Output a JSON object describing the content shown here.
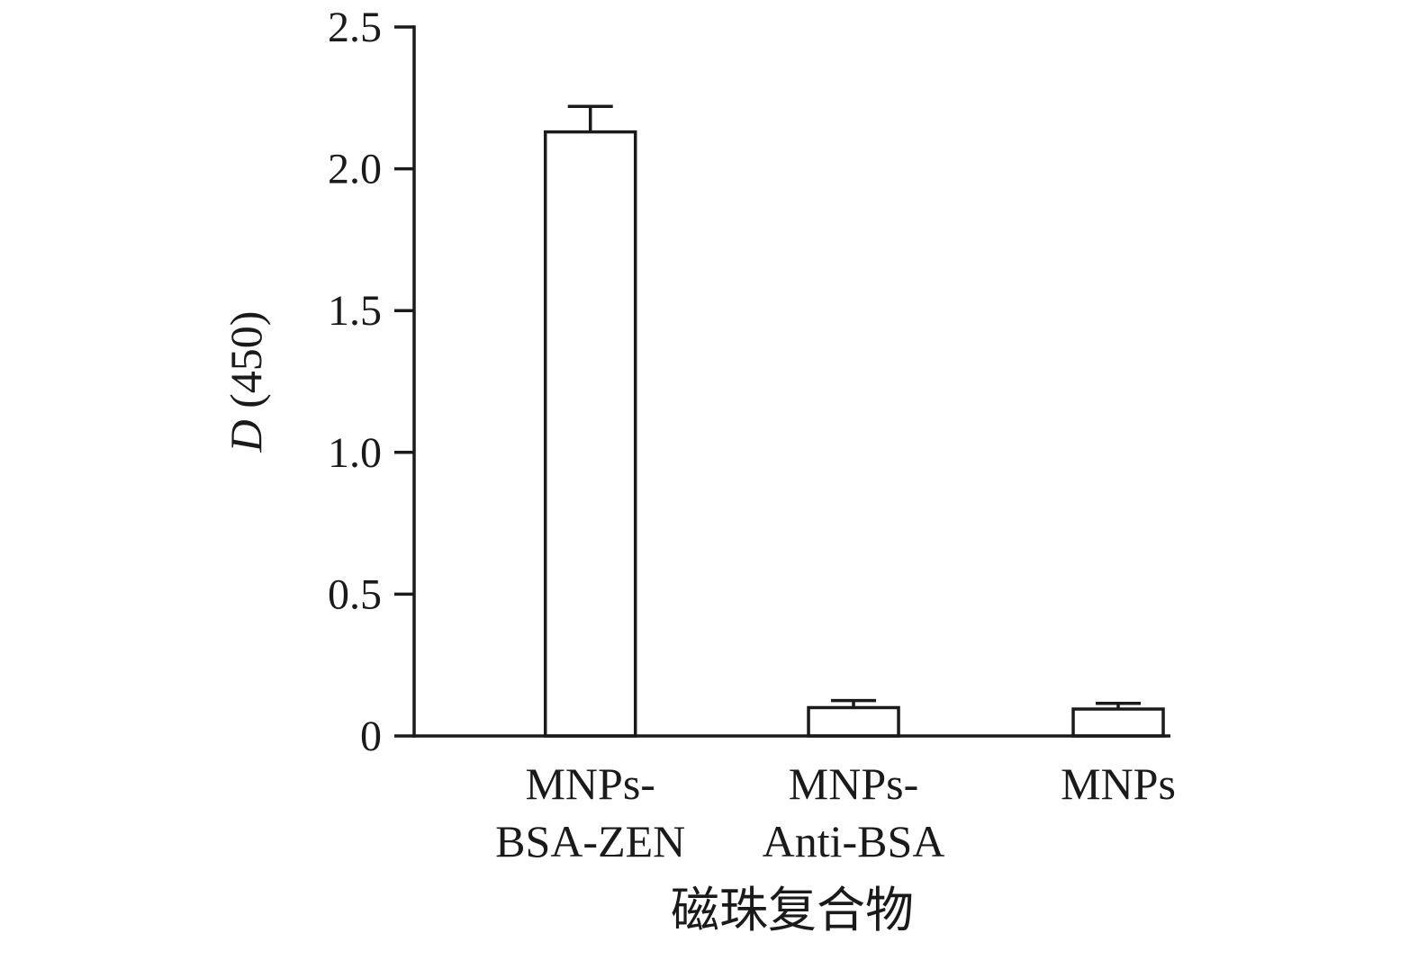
{
  "figure": {
    "background": "#ffffff",
    "ink": "#1a1a1a"
  },
  "chart_data": {
    "type": "bar",
    "title": "",
    "categories": [
      [
        "MNPs-",
        "BSA-ZEN"
      ],
      [
        "MNPs-",
        "Anti-BSA"
      ],
      [
        "MNPs"
      ]
    ],
    "values": [
      2.13,
      0.1,
      0.095
    ],
    "errors": [
      0.09,
      0.025,
      0.02
    ],
    "xlabel": "磁珠复合物",
    "ylabel_italic": "D",
    "ylabel_rest": " (450)",
    "ylabel_full": "D (450)",
    "ylim": [
      0,
      2.5
    ],
    "yticks": [
      0,
      0.5,
      1.0,
      1.5,
      2.0,
      2.5
    ],
    "ytick_labels": [
      "0",
      "0.5",
      "1.0",
      "1.5",
      "2.0",
      "2.5"
    ],
    "bar_fill": "#ffffff",
    "bar_stroke": "#1a1a1a",
    "grid": false,
    "legend": "none"
  }
}
